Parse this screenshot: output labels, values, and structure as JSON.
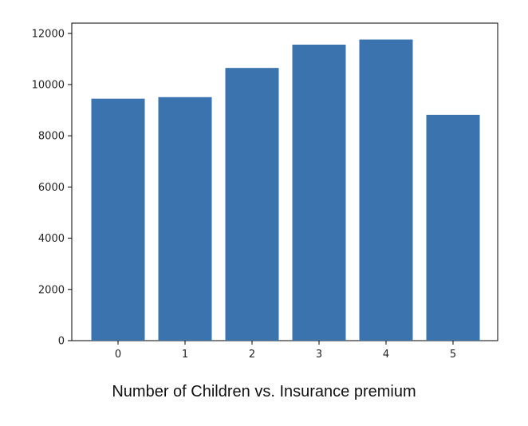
{
  "caption": "Number of Children vs. Insurance premium",
  "chart_data": {
    "type": "bar",
    "categories": [
      "0",
      "1",
      "2",
      "3",
      "4",
      "5"
    ],
    "values": [
      9450,
      9510,
      10650,
      11560,
      11760,
      8820
    ],
    "title": "",
    "xlabel": "",
    "ylabel": "",
    "ylim": [
      0,
      12400
    ],
    "yticks": [
      0,
      2000,
      4000,
      6000,
      8000,
      10000,
      12000
    ],
    "ytick_labels": [
      "0",
      "2000",
      "4000",
      "6000",
      "8000",
      "10000",
      "12000"
    ],
    "bar_color": "#3a73ae",
    "grid": false,
    "legend": "none"
  }
}
